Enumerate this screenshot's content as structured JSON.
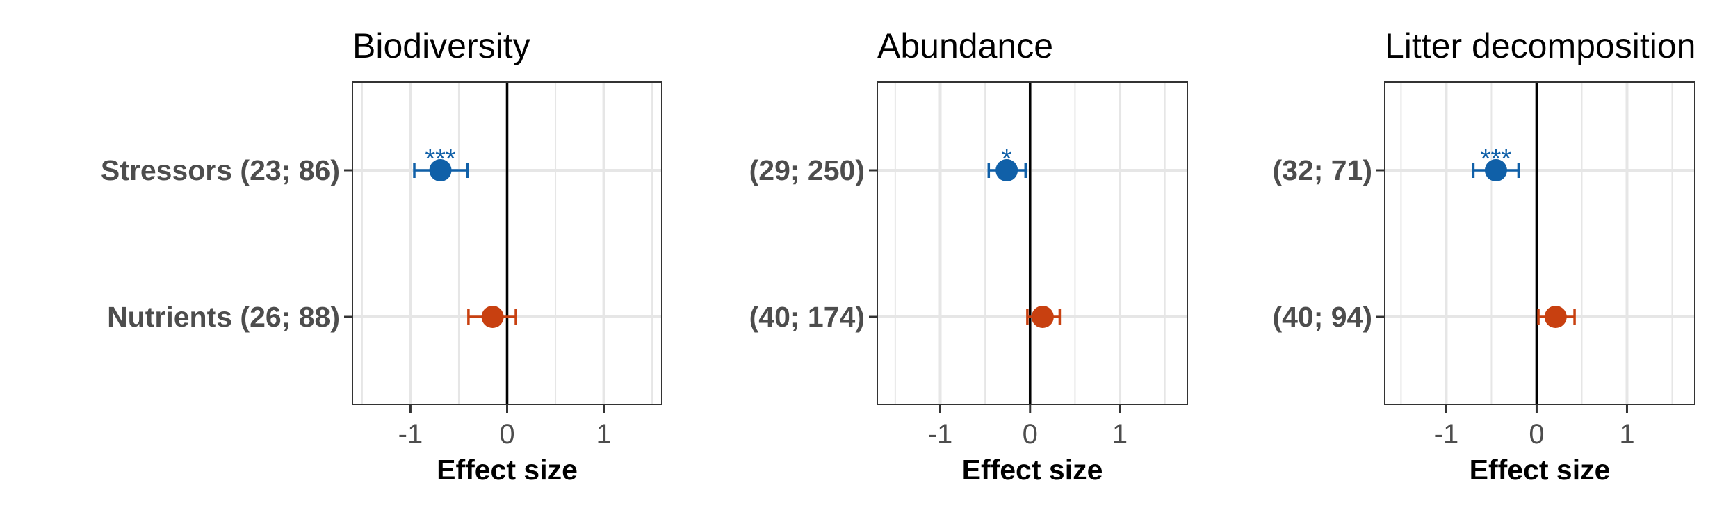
{
  "figure": {
    "xlabel": "Effect size",
    "colors": {
      "stressors": "#1060a8",
      "nutrients": "#c84010",
      "zero_line": "#000000",
      "grid": "#e6e6e6",
      "panel_border": "#333333"
    }
  },
  "chart_data": [
    {
      "type": "scatter",
      "title": "Biodiversity",
      "xlabel": "Effect size",
      "xlim": [
        -1.6,
        1.6
      ],
      "xticks": [
        -1,
        0,
        1
      ],
      "xtick_labels": [
        "-1",
        "0",
        "1"
      ],
      "grid": true,
      "reference_line": 0,
      "categories": [
        "Stressors (23; 86)",
        "Nutrients (26; 88)"
      ],
      "series": [
        {
          "name": "Stressors",
          "color": "#1060a8",
          "x": -0.69,
          "ci": [
            -0.96,
            -0.41
          ],
          "significance": "***"
        },
        {
          "name": "Nutrients",
          "color": "#c84010",
          "x": -0.15,
          "ci": [
            -0.4,
            0.09
          ],
          "significance": ""
        }
      ]
    },
    {
      "type": "scatter",
      "title": "Abundance",
      "xlabel": "Effect size",
      "xlim": [
        -1.7,
        1.75
      ],
      "xticks": [
        -1,
        0,
        1
      ],
      "xtick_labels": [
        "-1",
        "0",
        "1"
      ],
      "grid": true,
      "reference_line": 0,
      "categories": [
        "(29; 250)",
        "(40; 174)"
      ],
      "series": [
        {
          "name": "Stressors",
          "color": "#1060a8",
          "x": -0.26,
          "ci": [
            -0.46,
            -0.05
          ],
          "significance": "*"
        },
        {
          "name": "Nutrients",
          "color": "#c84010",
          "x": 0.14,
          "ci": [
            -0.03,
            0.33
          ],
          "significance": ""
        }
      ]
    },
    {
      "type": "scatter",
      "title": "Litter decomposition",
      "xlabel": "Effect size",
      "xlim": [
        -1.68,
        1.75
      ],
      "xticks": [
        -1,
        0,
        1
      ],
      "xtick_labels": [
        "-1",
        "0",
        "1"
      ],
      "grid": true,
      "reference_line": 0,
      "categories": [
        "(32; 71)",
        "(40; 94)"
      ],
      "series": [
        {
          "name": "Stressors",
          "color": "#1060a8",
          "x": -0.45,
          "ci": [
            -0.7,
            -0.2
          ],
          "significance": "***"
        },
        {
          "name": "Nutrients",
          "color": "#c84010",
          "x": 0.21,
          "ci": [
            0.02,
            0.42
          ],
          "significance": ""
        }
      ]
    }
  ]
}
